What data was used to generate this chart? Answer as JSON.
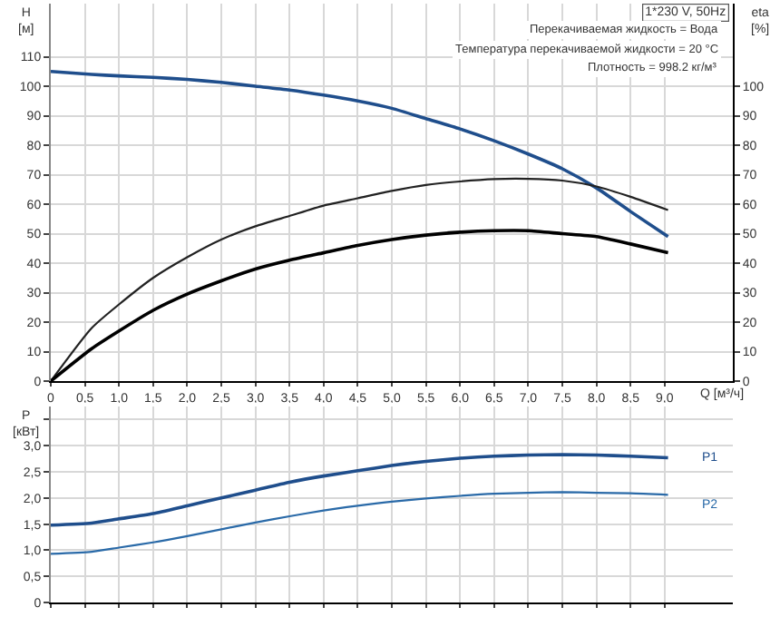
{
  "chart_data": [
    {
      "type": "line",
      "title": "1*230 V, 50Hz",
      "annotations": [
        "Перекачиваемая жидкость = Вода",
        "Температура перекачиваемой жидкости = 20 °C",
        "Плотность = 998.2 кг/м³"
      ],
      "xlabel": "Q [м³/ч]",
      "ylabel": "H [м]",
      "y2label": "eta [%]",
      "xlim": [
        0,
        10
      ],
      "xticks": [
        0,
        {
          "value": 0.5,
          "label": "0,5"
        },
        {
          "value": 1,
          "label": "1,0"
        },
        {
          "value": 1.5,
          "label": "1,5"
        },
        {
          "value": 2,
          "label": "2,0"
        },
        {
          "value": 2.5,
          "label": "2,5"
        },
        {
          "value": 3,
          "label": "3,0"
        },
        {
          "value": 3.5,
          "label": "3,5"
        },
        {
          "value": 4,
          "label": "4,0"
        },
        {
          "value": 4.5,
          "label": "4,5"
        },
        {
          "value": 5,
          "label": "5,0"
        },
        {
          "value": 5.5,
          "label": "5,5"
        },
        {
          "value": 6,
          "label": "6,0"
        },
        {
          "value": 6.5,
          "label": "6,5"
        },
        {
          "value": 7,
          "label": "7,0"
        },
        {
          "value": 7.5,
          "label": "7,5"
        },
        {
          "value": 8,
          "label": "8,0"
        },
        {
          "value": 8.5,
          "label": "8,5"
        },
        {
          "value": 9,
          "label": "9,0"
        }
      ],
      "ylim": [
        0,
        128
      ],
      "yticks": [
        0,
        10,
        20,
        30,
        40,
        50,
        60,
        70,
        80,
        90,
        100,
        110
      ],
      "y2lim": [
        0,
        128
      ],
      "y2ticks": [
        0,
        10,
        20,
        30,
        40,
        50,
        60,
        70,
        80,
        90,
        100
      ],
      "grid": true,
      "legend": false,
      "marker": "none",
      "line_style": "solid",
      "series": [
        {
          "color": "#1f4e8c",
          "x": [
            0,
            0.6,
            1,
            1.5,
            2,
            2.5,
            3,
            3.5,
            4,
            4.5,
            5,
            5.5,
            6,
            6.5,
            7,
            7.5,
            8,
            8.5,
            9.05
          ],
          "values": [
            105,
            104,
            103.5,
            103,
            102.3,
            101.3,
            100,
            98.7,
            97,
            95,
            92.5,
            89,
            85.5,
            81.5,
            77,
            72,
            65.5,
            57.5,
            49
          ]
        },
        {
          "color": "#222222",
          "axis": "y2",
          "x": [
            0,
            0.6,
            1,
            1.5,
            2,
            2.5,
            3,
            3.5,
            4,
            4.5,
            5,
            5.5,
            6,
            6.5,
            7,
            7.5,
            8,
            8.5,
            9.05
          ],
          "values": [
            0,
            18,
            26,
            35,
            42,
            48,
            52.5,
            56,
            59.5,
            62,
            64.5,
            66.5,
            67.7,
            68.5,
            68.6,
            68,
            66,
            62.5,
            58
          ]
        },
        {
          "color": "#000000",
          "axis": "y2",
          "x": [
            0,
            0.6,
            1,
            1.5,
            2,
            2.5,
            3,
            3.5,
            4,
            4.5,
            5,
            5.5,
            6,
            6.5,
            7,
            7.5,
            8,
            8.5,
            9.05
          ],
          "values": [
            0,
            11,
            17,
            24,
            29.5,
            34,
            38,
            41,
            43.5,
            46,
            48,
            49.5,
            50.5,
            51,
            51,
            50,
            49,
            46.5,
            43.5
          ]
        }
      ]
    },
    {
      "type": "line",
      "ylabel": "P [кВт]",
      "tick_labels": "y",
      "xlim": [
        0,
        10
      ],
      "xticks": [
        0,
        0.5,
        1,
        1.5,
        2,
        2.5,
        3,
        3.5,
        4,
        4.5,
        5,
        5.5,
        6,
        6.5,
        7,
        7.5,
        8,
        8.5,
        9
      ],
      "ylim": [
        0,
        3.75
      ],
      "yticks": [
        0,
        {
          "value": 0.5,
          "label": "0,5"
        },
        {
          "value": 1,
          "label": "1,0"
        },
        {
          "value": 1.5,
          "label": "1,5"
        },
        {
          "value": 2,
          "label": "2,0"
        },
        {
          "value": 2.5,
          "label": "2,5"
        },
        {
          "value": 3,
          "label": "3,0"
        },
        {
          "value": 3.5,
          "label": null
        }
      ],
      "grid": true,
      "legend": false,
      "marker": "none",
      "line_style": "solid",
      "series": [
        {
          "name": "P1",
          "color": "#1f4e8c",
          "x": [
            0,
            0.6,
            1,
            1.5,
            2,
            2.5,
            3,
            3.5,
            4,
            4.5,
            5,
            5.5,
            6,
            6.5,
            7,
            7.5,
            8,
            8.5,
            9.05
          ],
          "values": [
            1.48,
            1.52,
            1.6,
            1.7,
            1.85,
            2.0,
            2.15,
            2.3,
            2.42,
            2.52,
            2.62,
            2.7,
            2.76,
            2.8,
            2.82,
            2.83,
            2.82,
            2.8,
            2.77
          ]
        },
        {
          "name": "P2",
          "color": "#2a6aa8",
          "x": [
            0,
            0.6,
            1,
            1.5,
            2,
            2.5,
            3,
            3.5,
            4,
            4.5,
            5,
            5.5,
            6,
            6.5,
            7,
            7.5,
            8,
            8.5,
            9.05
          ],
          "values": [
            0.93,
            0.97,
            1.05,
            1.15,
            1.27,
            1.4,
            1.53,
            1.65,
            1.76,
            1.85,
            1.93,
            1.99,
            2.04,
            2.08,
            2.1,
            2.11,
            2.1,
            2.09,
            2.06
          ]
        }
      ]
    }
  ]
}
